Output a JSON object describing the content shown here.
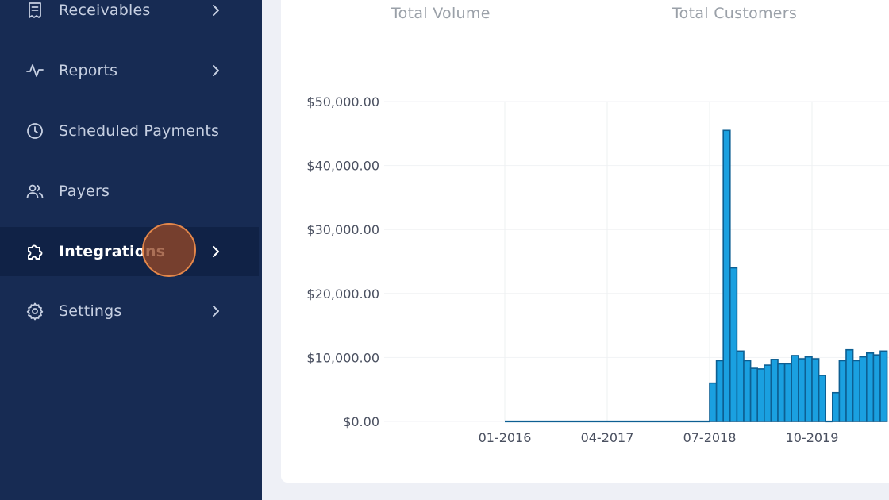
{
  "sidebar": {
    "items": [
      {
        "label": "Receivables",
        "icon": "receipt-icon",
        "chevron": true,
        "active": false
      },
      {
        "label": "Reports",
        "icon": "activity-icon",
        "chevron": true,
        "active": false
      },
      {
        "label": "Scheduled Payments",
        "icon": "clock-icon",
        "chevron": false,
        "active": false
      },
      {
        "label": "Payers",
        "icon": "users-icon",
        "chevron": false,
        "active": false
      },
      {
        "label": "Integrations",
        "icon": "puzzle-icon",
        "chevron": true,
        "active": true
      },
      {
        "label": "Settings",
        "icon": "gear-icon",
        "chevron": true,
        "active": false
      }
    ]
  },
  "stats": {
    "total_volume_label": "Total Volume",
    "total_customers_label": "Total Customers"
  },
  "colors": {
    "sidebar_bg": "#172b53",
    "active_item_bg": "#102246",
    "bar_fill": "#1aa0e0",
    "bar_stroke": "#0d5f92",
    "cursor": "#e4874a"
  },
  "chart_data": {
    "type": "bar",
    "ylim": [
      0,
      50000
    ],
    "y_ticks": [
      "$0.00",
      "$10,000.00",
      "$20,000.00",
      "$30,000.00",
      "$40,000.00",
      "$50,000.00"
    ],
    "x_ticks": [
      "01-2016",
      "04-2017",
      "07-2018",
      "10-2019"
    ],
    "x_start": "01-2016",
    "values": [
      0,
      0,
      0,
      0,
      0,
      0,
      0,
      0,
      0,
      0,
      0,
      0,
      0,
      0,
      0,
      0,
      0,
      0,
      0,
      0,
      0,
      0,
      0,
      0,
      0,
      0,
      0,
      0,
      0,
      0,
      6000,
      9500,
      45500,
      24000,
      11000,
      9500,
      8300,
      8200,
      8800,
      9700,
      9000,
      9000,
      10300,
      9800,
      10100,
      9800,
      7200,
      0,
      4500,
      9500,
      11200,
      9500,
      10100,
      10700,
      10400,
      11000
    ]
  }
}
